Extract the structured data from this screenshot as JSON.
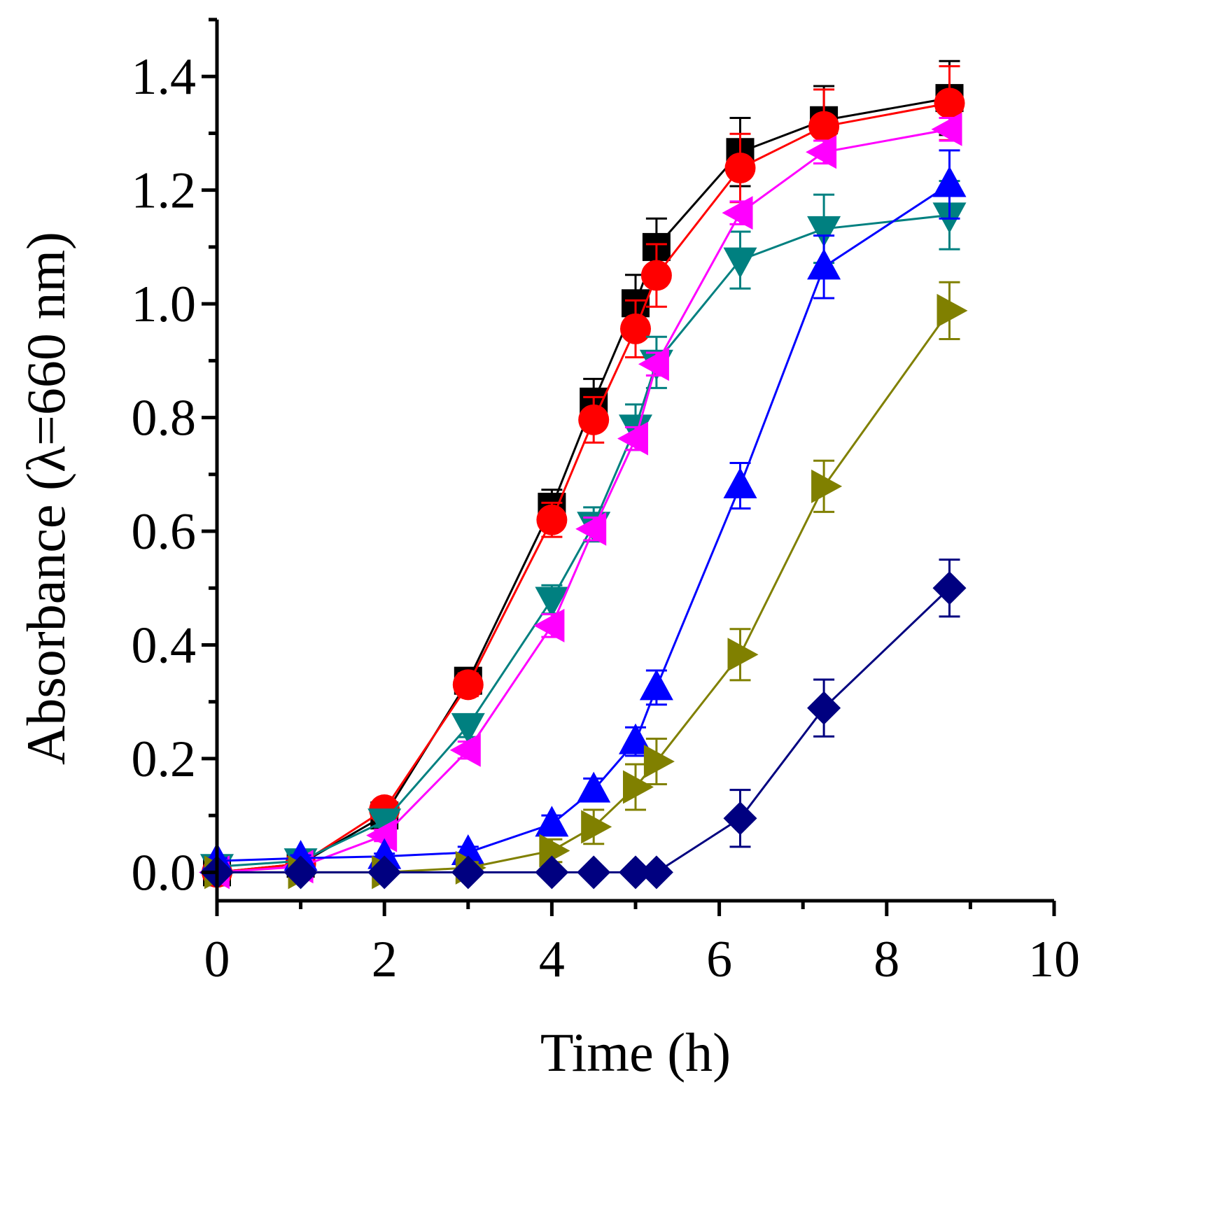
{
  "chart_data": {
    "type": "line",
    "title": "",
    "xlabel": "Time (h)",
    "ylabel": "Absorbance (λ=660 nm)",
    "xlim": [
      0,
      10
    ],
    "ylim": [
      -0.05,
      1.5
    ],
    "xticks": [
      "0",
      "2",
      "4",
      "6",
      "8",
      "10"
    ],
    "xtick_values": [
      0,
      2,
      4,
      6,
      8,
      10
    ],
    "yticks": [
      "0.0",
      "0.2",
      "0.4",
      "0.6",
      "0.8",
      "1.0",
      "1.2",
      "1.4"
    ],
    "ytick_values": [
      0,
      0.2,
      0.4,
      0.6,
      0.8,
      1.0,
      1.2,
      1.4
    ],
    "grid": false,
    "x": [
      0,
      1,
      2,
      3,
      4,
      4.5,
      5,
      5.25,
      6.25,
      7.25,
      8.75
    ],
    "series": [
      {
        "name": "series-1",
        "color": "#000000",
        "marker": "square",
        "values": [
          0.0,
          0.015,
          0.1,
          0.337,
          0.643,
          0.828,
          1.001,
          1.1,
          1.267,
          1.323,
          1.362
        ],
        "errors": [
          0.005,
          0.005,
          0.01,
          0.02,
          0.03,
          0.04,
          0.05,
          0.05,
          0.06,
          0.06,
          0.065
        ]
      },
      {
        "name": "series-2",
        "color": "#ff0000",
        "marker": "circle",
        "values": [
          0.0,
          0.015,
          0.11,
          0.33,
          0.62,
          0.796,
          0.956,
          1.05,
          1.239,
          1.312,
          1.353
        ],
        "errors": [
          0.005,
          0.005,
          0.01,
          0.02,
          0.03,
          0.04,
          0.05,
          0.055,
          0.06,
          0.065,
          0.065
        ]
      },
      {
        "name": "series-3",
        "color": "#008080",
        "marker": "triangle-down",
        "values": [
          0.01,
          0.02,
          0.09,
          0.258,
          0.48,
          0.612,
          0.783,
          0.897,
          1.077,
          1.132,
          1.156
        ],
        "errors": [
          0.005,
          0.005,
          0.01,
          0.02,
          0.025,
          0.03,
          0.04,
          0.045,
          0.05,
          0.06,
          0.06
        ]
      },
      {
        "name": "series-4",
        "color": "#ff00ff",
        "marker": "triangle-left",
        "values": [
          0.0,
          0.01,
          0.065,
          0.215,
          0.434,
          0.604,
          0.763,
          0.894,
          1.16,
          1.267,
          1.307
        ],
        "errors": [
          0.005,
          0.005,
          0.01,
          0.015,
          0.02,
          0.02,
          0.02,
          0.02,
          0.02,
          0.02,
          0.02
        ]
      },
      {
        "name": "series-5",
        "color": "#0000ff",
        "marker": "triangle-up",
        "values": [
          0.02,
          0.025,
          0.028,
          0.035,
          0.085,
          0.145,
          0.23,
          0.325,
          0.68,
          1.065,
          1.21
        ],
        "errors": [
          0.005,
          0.005,
          0.005,
          0.01,
          0.015,
          0.02,
          0.025,
          0.03,
          0.04,
          0.055,
          0.06
        ]
      },
      {
        "name": "series-6",
        "color": "#808000",
        "marker": "triangle-right",
        "values": [
          0.0,
          0.0,
          0.0,
          0.008,
          0.038,
          0.08,
          0.15,
          0.195,
          0.383,
          0.679,
          0.988
        ],
        "errors": [
          0.005,
          0.005,
          0.005,
          0.01,
          0.02,
          0.03,
          0.04,
          0.04,
          0.045,
          0.045,
          0.05
        ]
      },
      {
        "name": "series-7",
        "color": "#000080",
        "marker": "diamond",
        "values": [
          0.0,
          0.0,
          0.0,
          0.0,
          0.0,
          0.0,
          0.0,
          0.0,
          0.095,
          0.289,
          0.5
        ],
        "errors": [
          0,
          0,
          0,
          0,
          0,
          0,
          0,
          0,
          0.05,
          0.05,
          0.05
        ]
      }
    ]
  }
}
